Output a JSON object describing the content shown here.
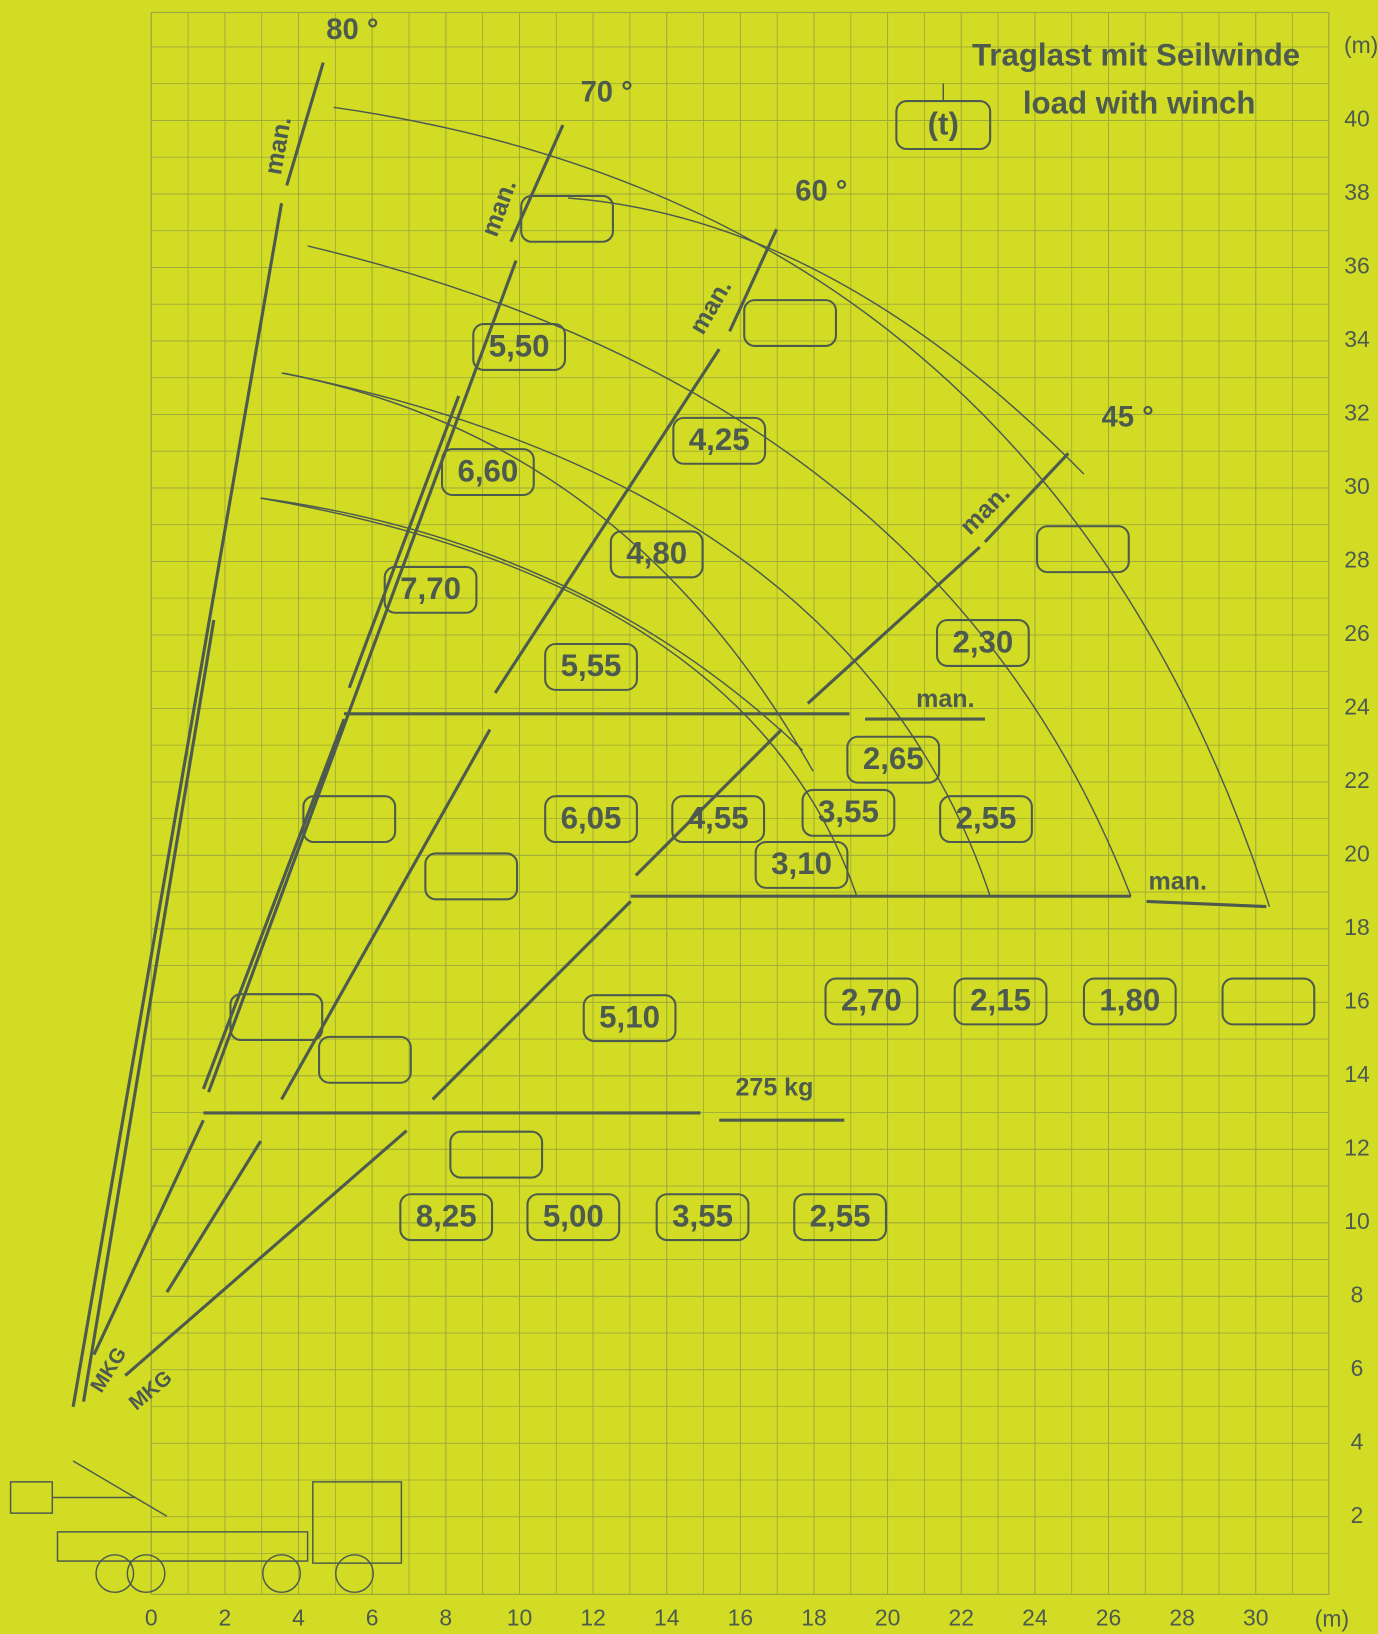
{
  "header": {
    "title_lines": [
      "Traglast mit Seilwinde",
      "load with winch"
    ],
    "unit_box": "(t)"
  },
  "x_axis": {
    "ticks": [
      0,
      2,
      4,
      6,
      8,
      10,
      12,
      14,
      16,
      18,
      20,
      22,
      24,
      26,
      28,
      30
    ],
    "unit": "(m)"
  },
  "y_axis": {
    "ticks": [
      2,
      4,
      6,
      8,
      10,
      12,
      14,
      16,
      18,
      20,
      22,
      24,
      26,
      28,
      30,
      32,
      34,
      36,
      38,
      40
    ],
    "unit": "(m)"
  },
  "angles": [
    "80 °",
    "70 °",
    "60 °",
    "45 °"
  ],
  "loads": [
    "5,50",
    "6,60",
    "7,70",
    "4,25",
    "4,80",
    "5,55",
    "2,30",
    "2,65",
    "6,05",
    "4,55",
    "3,55",
    "3,10",
    "2,55",
    "5,10",
    "2,70",
    "2,15",
    "1,80",
    "8,25",
    "5,00",
    "3,55",
    "2,55"
  ],
  "manual_labels": [
    "man.",
    "man.",
    "man.",
    "man.",
    "man.",
    "man."
  ],
  "extension_load": "275 kg",
  "boom_marks": [
    "MKG",
    "MKG"
  ]
}
